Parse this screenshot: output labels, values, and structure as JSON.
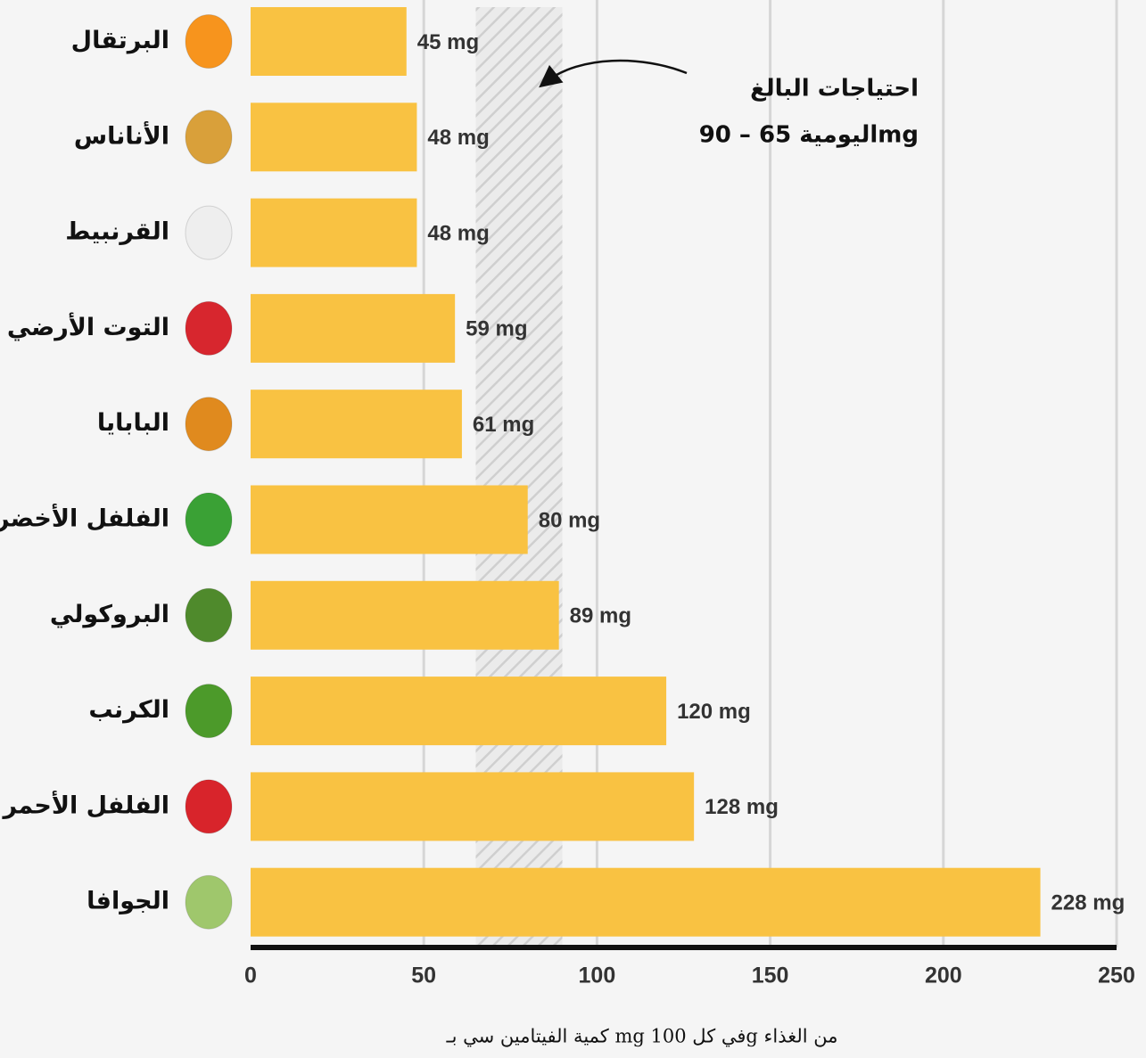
{
  "chart_data": {
    "type": "bar",
    "orientation": "horizontal",
    "categories": [
      "البرتقال",
      "الأناناس",
      "القرنبيط",
      "التوت الأرضي",
      "البابايا",
      "الفلفل الأخضر",
      "البروكولي",
      "الكرنب",
      "الفلفل الأحمر",
      "الجوافا"
    ],
    "values": [
      45,
      48,
      48,
      59,
      61,
      80,
      89,
      120,
      128,
      228
    ],
    "value_labels": [
      "45 mg",
      "48 mg",
      "48 mg",
      "59 mg",
      "61 mg",
      "80 mg",
      "89 mg",
      "120 mg",
      "128 mg",
      "228 mg"
    ],
    "color": "#f9c242",
    "xlim": [
      0,
      250
    ],
    "xticks": [
      0,
      50,
      100,
      150,
      200,
      250
    ],
    "grid": true,
    "x_label": "كمية الفيتامين سي بـ mg في كل 100g من الغذاء",
    "band": {
      "range": [
        65,
        90
      ],
      "lines": [
        "احتياجات البالغ",
        "اليومية 65 – 90mg"
      ]
    }
  }
}
